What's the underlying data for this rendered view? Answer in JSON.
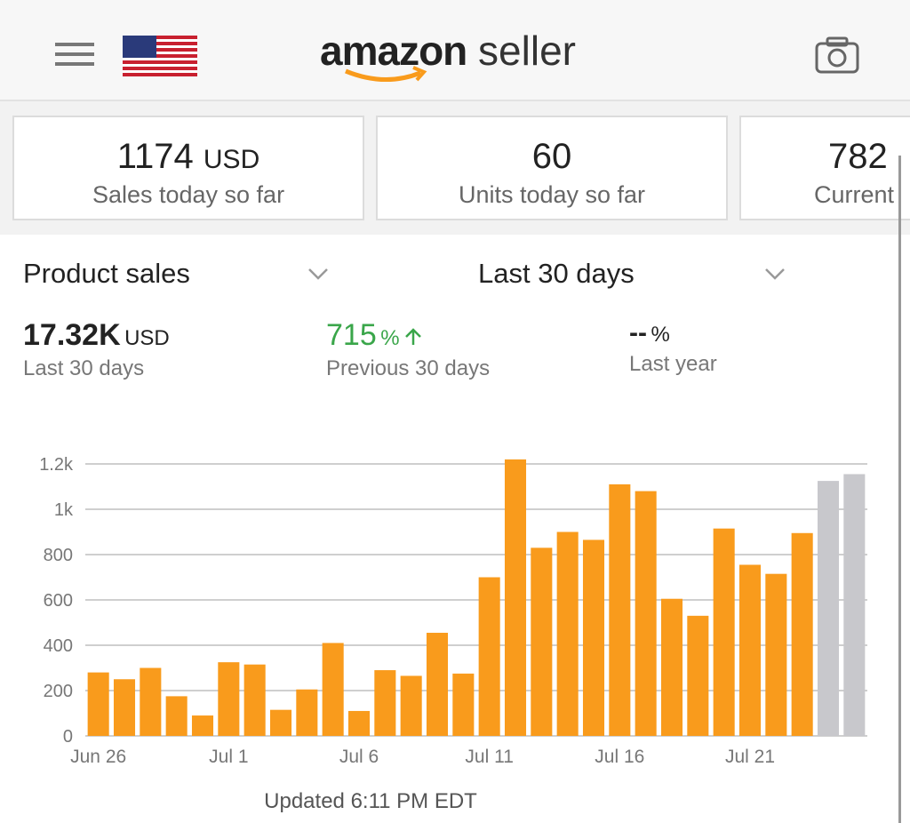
{
  "header": {
    "logo_bold": "amazon",
    "logo_light": "seller"
  },
  "cards": [
    {
      "value": "1174",
      "unit": "USD",
      "label": "Sales today so far"
    },
    {
      "value": "60",
      "label": "Units today so far"
    },
    {
      "value": "782",
      "label": "Current"
    }
  ],
  "filters": {
    "metric": "Product sales",
    "period": "Last 30 days"
  },
  "summary": [
    {
      "value": "17.32K",
      "unit": "USD",
      "label": "Last 30 days"
    },
    {
      "value": "715",
      "unit": "%",
      "label": "Previous 30 days"
    },
    {
      "value": "--",
      "unit": "%",
      "label": "Last year"
    }
  ],
  "chart_data": {
    "type": "bar",
    "categories": [
      "Jun 26",
      null,
      null,
      null,
      null,
      "Jul 1",
      null,
      null,
      null,
      null,
      "Jul 6",
      null,
      null,
      null,
      null,
      "Jul 11",
      null,
      null,
      null,
      null,
      "Jul 16",
      null,
      null,
      null,
      null,
      "Jul 21",
      null,
      null,
      null,
      null
    ],
    "values": [
      280,
      250,
      300,
      175,
      90,
      325,
      315,
      115,
      205,
      410,
      110,
      290,
      265,
      455,
      275,
      700,
      1220,
      830,
      900,
      865,
      1110,
      1080,
      605,
      530,
      915,
      755,
      715,
      895,
      1125,
      1155
    ],
    "colors": [
      "#f99b1c",
      "#f99b1c",
      "#f99b1c",
      "#f99b1c",
      "#f99b1c",
      "#f99b1c",
      "#f99b1c",
      "#f99b1c",
      "#f99b1c",
      "#f99b1c",
      "#f99b1c",
      "#f99b1c",
      "#f99b1c",
      "#f99b1c",
      "#f99b1c",
      "#f99b1c",
      "#f99b1c",
      "#f99b1c",
      "#f99b1c",
      "#f99b1c",
      "#f99b1c",
      "#f99b1c",
      "#f99b1c",
      "#f99b1c",
      "#f99b1c",
      "#f99b1c",
      "#f99b1c",
      "#f99b1c",
      "#c8c8cc",
      "#c8c8cc"
    ],
    "ylim": [
      0,
      1200
    ],
    "yticks": [
      0,
      200,
      400,
      600,
      800,
      {
        "value": 1000,
        "label": "1k"
      },
      {
        "value": 1200,
        "label": "1.2k"
      }
    ],
    "grid": true
  },
  "footer": "Updated 6:11 PM EDT"
}
